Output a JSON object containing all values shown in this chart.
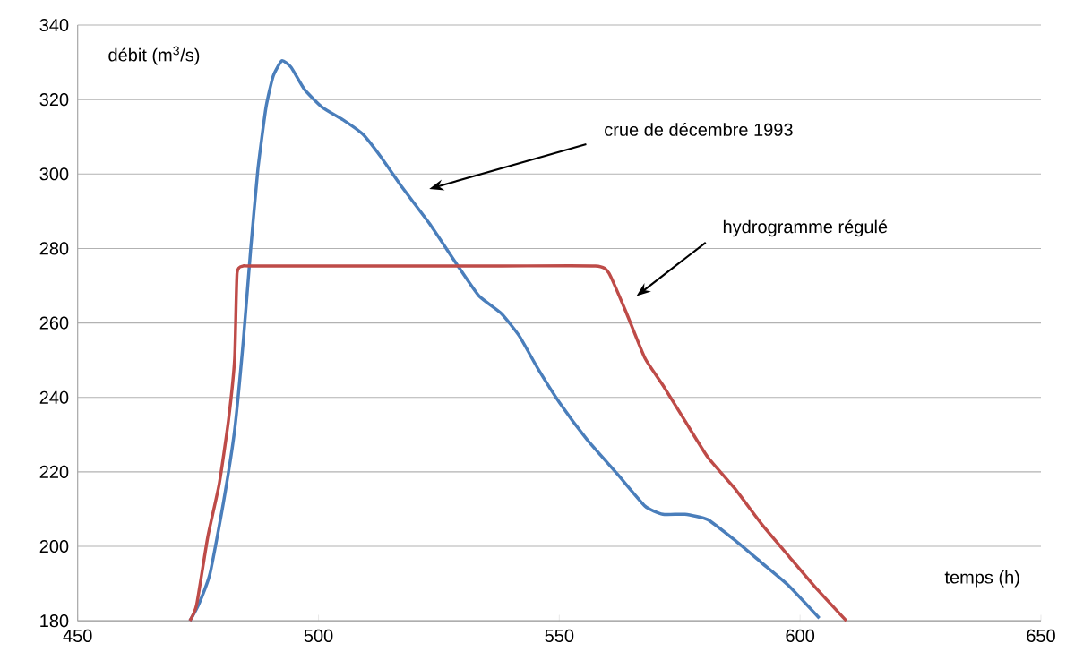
{
  "chart_data": {
    "type": "line",
    "xlabel": "temps (h)",
    "ylabel": "débit (m$^{3}$/s)",
    "xlim": [
      450,
      650
    ],
    "xticks": [
      450,
      500,
      550,
      600,
      650
    ],
    "ylim": [
      180,
      340
    ],
    "yticks": [
      180,
      200,
      220,
      240,
      260,
      280,
      300,
      320,
      340
    ],
    "grid": "y",
    "marker": "none",
    "line_style": "solid",
    "series": [
      {
        "color": "#4a7ebb",
        "x": [
          473.3,
          475.1,
          477.5,
          480.3,
          482.6,
          484.4,
          485.9,
          487.4,
          489.1,
          490.6,
          492.4,
          494.3,
          497.1,
          500.8,
          505.4,
          509.2,
          512.9,
          517.5,
          523.1,
          528.7,
          533.3,
          538,
          541.7,
          545.4,
          550.1,
          555.7,
          562.2,
          567.8,
          571.5,
          576.1,
          580.8,
          586.4,
          592,
          597.5,
          604
        ],
        "values": [
          180,
          184.3,
          192.8,
          212,
          231.3,
          255.3,
          279.4,
          301,
          317.9,
          326.3,
          330.4,
          328.7,
          322.7,
          317.9,
          314.3,
          310.7,
          304.7,
          296.2,
          286.6,
          275.8,
          267.3,
          262.5,
          256.5,
          248.1,
          238.5,
          228.8,
          219.2,
          210.8,
          208.6,
          208.6,
          207.2,
          201.7,
          195.6,
          189.6,
          180.7
        ]
      },
      {
        "color": "#be4b48",
        "x": [
          473.3,
          474.7,
          477,
          479.4,
          481.3,
          482.6,
          483.1,
          484.4,
          485.9,
          508.2,
          538,
          557.5,
          560.3,
          564,
          567.8,
          571.5,
          576.1,
          580.8,
          586.4,
          592,
          597.5,
          603.1,
          609.6
        ],
        "values": [
          180,
          184.3,
          202.4,
          216.8,
          233.7,
          250.5,
          273.4,
          275.3,
          275.3,
          275.3,
          275.3,
          275.3,
          273.4,
          262.5,
          250.5,
          243.3,
          233.7,
          224,
          215.6,
          206,
          197.6,
          189.1,
          180
        ]
      }
    ],
    "annotations": [
      "crue de décembre 1993",
      "hydrogramme régulé"
    ]
  }
}
